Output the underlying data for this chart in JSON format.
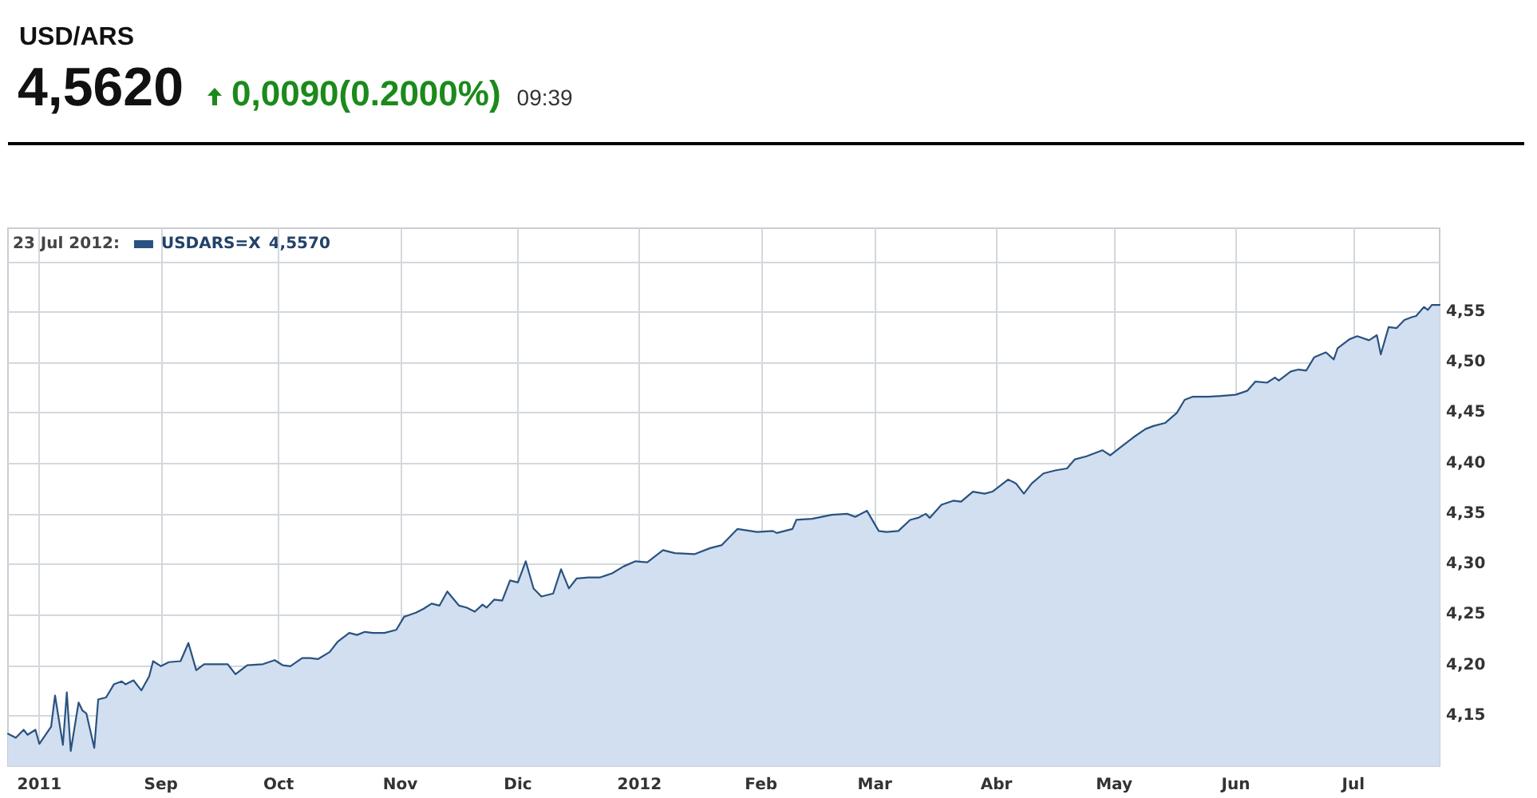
{
  "chart_data": {
    "type": "area",
    "title": "USD/ARS",
    "subtitle": "4,5620",
    "annotations": [
      "0,0090(0.2000%)",
      "09:39",
      "4,5570"
    ],
    "legend_title": "23 Jul 2012:",
    "legend": "top left",
    "grid": true,
    "xlim": [
      "2011-07-24",
      "2012-07-23"
    ],
    "xticks": [
      {
        "value": "2011-08-01",
        "label": "2011"
      },
      {
        "value": "2011-09-01",
        "label": "Sep"
      },
      {
        "value": "2011-10-01",
        "label": "Oct"
      },
      {
        "value": "2011-11-01",
        "label": "Nov"
      },
      {
        "value": "2011-12-01",
        "label": "Dic"
      },
      {
        "value": "2012-01-01",
        "label": "2012"
      },
      {
        "value": "2012-02-01",
        "label": "Feb"
      },
      {
        "value": "2012-03-01",
        "label": "Mar"
      },
      {
        "value": "2012-04-01",
        "label": "Abr"
      },
      {
        "value": "2012-05-01",
        "label": "May"
      },
      {
        "value": "2012-06-01",
        "label": "Jun"
      },
      {
        "value": "2012-07-01",
        "label": "Jul"
      }
    ],
    "ylim": [
      4.1,
      4.633
    ],
    "yticks": [
      {
        "value": 4.15,
        "label": "4,15"
      },
      {
        "value": 4.2,
        "label": "4,20"
      },
      {
        "value": 4.25,
        "label": "4,25"
      },
      {
        "value": 4.3,
        "label": "4,30"
      },
      {
        "value": 4.35,
        "label": "4,35"
      },
      {
        "value": 4.4,
        "label": "4,40"
      },
      {
        "value": 4.45,
        "label": "4,45"
      },
      {
        "value": 4.5,
        "label": "4,50"
      },
      {
        "value": 4.55,
        "label": "4,55"
      },
      {
        "value": 4.6,
        "label": null
      }
    ],
    "x": [
      "2011-07-24",
      "2011-07-26",
      "2011-07-28",
      "2011-07-29",
      "2011-07-31",
      "2011-08-01",
      "2011-08-04",
      "2011-08-05",
      "2011-08-07",
      "2011-08-08",
      "2011-08-09",
      "2011-08-11",
      "2011-08-12",
      "2011-08-13",
      "2011-08-15",
      "2011-08-16",
      "2011-08-18",
      "2011-08-20",
      "2011-08-22",
      "2011-08-23",
      "2011-08-25",
      "2011-08-27",
      "2011-08-29",
      "2011-08-30",
      "2011-09-01",
      "2011-09-03",
      "2011-09-06",
      "2011-09-08",
      "2011-09-10",
      "2011-09-12",
      "2011-09-15",
      "2011-09-18",
      "2011-09-20",
      "2011-09-23",
      "2011-09-27",
      "2011-09-30",
      "2011-10-02",
      "2011-10-04",
      "2011-10-07",
      "2011-10-09",
      "2011-10-11",
      "2011-10-14",
      "2011-10-16",
      "2011-10-19",
      "2011-10-21",
      "2011-10-23",
      "2011-10-25",
      "2011-10-28",
      "2011-10-31",
      "2011-11-02",
      "2011-11-05",
      "2011-11-07",
      "2011-11-09",
      "2011-11-11",
      "2011-11-13",
      "2011-11-16",
      "2011-11-18",
      "2011-11-20",
      "2011-11-22",
      "2011-11-23",
      "2011-11-25",
      "2011-11-27",
      "2011-11-29",
      "2011-12-01",
      "2011-12-03",
      "2011-12-05",
      "2011-12-07",
      "2011-12-10",
      "2011-12-12",
      "2011-12-14",
      "2011-12-16",
      "2011-12-19",
      "2011-12-22",
      "2011-12-25",
      "2011-12-28",
      "2011-12-31",
      "2012-01-03",
      "2012-01-07",
      "2012-01-10",
      "2012-01-15",
      "2012-01-19",
      "2012-01-22",
      "2012-01-26",
      "2012-01-31",
      "2012-02-04",
      "2012-02-05",
      "2012-02-09",
      "2012-02-10",
      "2012-02-14",
      "2012-02-19",
      "2012-02-23",
      "2012-02-25",
      "2012-02-28",
      "2012-03-02",
      "2012-03-04",
      "2012-03-07",
      "2012-03-10",
      "2012-03-12",
      "2012-03-14",
      "2012-03-15",
      "2012-03-18",
      "2012-03-21",
      "2012-03-23",
      "2012-03-26",
      "2012-03-29",
      "2012-03-31",
      "2012-04-04",
      "2012-04-06",
      "2012-04-08",
      "2012-04-10",
      "2012-04-13",
      "2012-04-16",
      "2012-04-19",
      "2012-04-21",
      "2012-04-24",
      "2012-04-28",
      "2012-04-30",
      "2012-05-03",
      "2012-05-06",
      "2012-05-09",
      "2012-05-11",
      "2012-05-14",
      "2012-05-17",
      "2012-05-19",
      "2012-05-21",
      "2012-05-25",
      "2012-05-29",
      "2012-06-01",
      "2012-06-04",
      "2012-06-06",
      "2012-06-09",
      "2012-06-11",
      "2012-06-12",
      "2012-06-15",
      "2012-06-17",
      "2012-06-19",
      "2012-06-21",
      "2012-06-24",
      "2012-06-26",
      "2012-06-27",
      "2012-06-30",
      "2012-07-02",
      "2012-07-05",
      "2012-07-07",
      "2012-07-08",
      "2012-07-10",
      "2012-07-12",
      "2012-07-14",
      "2012-07-16",
      "2012-07-17",
      "2012-07-19",
      "2012-07-20",
      "2012-07-21",
      "2012-07-23"
    ],
    "series": [
      {
        "name": "USDARS=X",
        "color": "#2a5280",
        "values": [
          4.132,
          4.128,
          4.136,
          4.131,
          4.136,
          4.122,
          4.139,
          4.17,
          4.121,
          4.173,
          4.115,
          4.163,
          4.155,
          4.152,
          4.118,
          4.166,
          4.168,
          4.181,
          4.184,
          4.181,
          4.185,
          4.175,
          4.189,
          4.204,
          4.199,
          4.203,
          4.204,
          4.222,
          4.195,
          4.201,
          4.201,
          4.201,
          4.191,
          4.2,
          4.201,
          4.205,
          4.2,
          4.199,
          4.207,
          4.207,
          4.206,
          4.213,
          4.223,
          4.232,
          4.23,
          4.233,
          4.232,
          4.232,
          4.235,
          4.248,
          4.252,
          4.256,
          4.261,
          4.259,
          4.273,
          4.259,
          4.257,
          4.253,
          4.26,
          4.257,
          4.265,
          4.264,
          4.284,
          4.282,
          4.303,
          4.276,
          4.268,
          4.271,
          4.295,
          4.276,
          4.286,
          4.287,
          4.287,
          4.291,
          4.298,
          4.303,
          4.302,
          4.314,
          4.311,
          4.31,
          4.316,
          4.319,
          4.335,
          4.332,
          4.333,
          4.331,
          4.335,
          4.344,
          4.345,
          4.349,
          4.35,
          4.347,
          4.353,
          4.333,
          4.332,
          4.333,
          4.344,
          4.346,
          4.35,
          4.346,
          4.359,
          4.363,
          4.362,
          4.372,
          4.37,
          4.372,
          4.384,
          4.38,
          4.37,
          4.38,
          4.39,
          4.393,
          4.395,
          4.404,
          4.407,
          4.413,
          4.408,
          4.417,
          4.426,
          4.434,
          4.437,
          4.44,
          4.45,
          4.463,
          4.466,
          4.466,
          4.467,
          4.468,
          4.472,
          4.481,
          4.48,
          4.485,
          4.482,
          4.491,
          4.493,
          4.492,
          4.505,
          4.51,
          4.503,
          4.514,
          4.523,
          4.526,
          4.522,
          4.527,
          4.508,
          4.535,
          4.534,
          4.542,
          4.545,
          4.546,
          4.555,
          4.552,
          4.557,
          4.557
        ]
      }
    ]
  }
}
